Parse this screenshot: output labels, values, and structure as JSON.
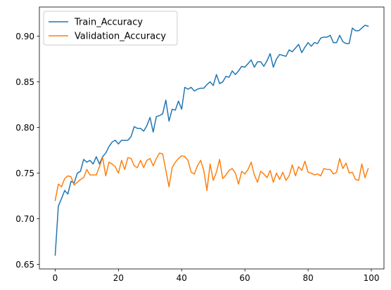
{
  "chart_data": {
    "type": "line",
    "title": "",
    "xlabel": "",
    "ylabel": "",
    "xlim": [
      -5,
      104
    ],
    "ylim": [
      0.645,
      0.932
    ],
    "xticks": [
      0,
      20,
      40,
      60,
      80,
      100
    ],
    "yticks": [
      0.65,
      0.7,
      0.75,
      0.8,
      0.85,
      0.9
    ],
    "ytick_labels": [
      "0.65",
      "0.70",
      "0.75",
      "0.80",
      "0.85",
      "0.90"
    ],
    "grid": false,
    "legend_position": "top-left",
    "series": [
      {
        "name": "Train_Accuracy",
        "color": "#1f77b4",
        "values": [
          0.66,
          0.714,
          0.722,
          0.731,
          0.727,
          0.741,
          0.739,
          0.75,
          0.752,
          0.765,
          0.762,
          0.764,
          0.76,
          0.768,
          0.76,
          0.768,
          0.772,
          0.779,
          0.784,
          0.786,
          0.782,
          0.786,
          0.786,
          0.786,
          0.79,
          0.801,
          0.799,
          0.799,
          0.796,
          0.802,
          0.811,
          0.795,
          0.812,
          0.813,
          0.815,
          0.83,
          0.807,
          0.82,
          0.819,
          0.829,
          0.82,
          0.844,
          0.842,
          0.844,
          0.84,
          0.842,
          0.843,
          0.843,
          0.847,
          0.85,
          0.846,
          0.858,
          0.848,
          0.85,
          0.856,
          0.855,
          0.862,
          0.858,
          0.862,
          0.867,
          0.866,
          0.87,
          0.874,
          0.866,
          0.872,
          0.872,
          0.867,
          0.873,
          0.881,
          0.866,
          0.875,
          0.88,
          0.879,
          0.878,
          0.885,
          0.883,
          0.887,
          0.891,
          0.882,
          0.888,
          0.893,
          0.889,
          0.893,
          0.892,
          0.898,
          0.899,
          0.899,
          0.901,
          0.893,
          0.893,
          0.901,
          0.894,
          0.892,
          0.892,
          0.909,
          0.906,
          0.906,
          0.909,
          0.912,
          0.911
        ]
      },
      {
        "name": "Validation_Accuracy",
        "color": "#ff7f0e",
        "values": [
          0.72,
          0.738,
          0.735,
          0.744,
          0.747,
          0.746,
          0.737,
          0.74,
          0.743,
          0.745,
          0.754,
          0.748,
          0.748,
          0.748,
          0.757,
          0.767,
          0.747,
          0.762,
          0.76,
          0.757,
          0.75,
          0.764,
          0.754,
          0.767,
          0.766,
          0.758,
          0.756,
          0.764,
          0.756,
          0.764,
          0.766,
          0.758,
          0.766,
          0.772,
          0.771,
          0.753,
          0.735,
          0.756,
          0.762,
          0.766,
          0.769,
          0.768,
          0.764,
          0.751,
          0.749,
          0.758,
          0.764,
          0.753,
          0.731,
          0.76,
          0.742,
          0.751,
          0.765,
          0.744,
          0.748,
          0.753,
          0.755,
          0.75,
          0.738,
          0.752,
          0.749,
          0.754,
          0.762,
          0.748,
          0.74,
          0.752,
          0.749,
          0.745,
          0.753,
          0.74,
          0.75,
          0.743,
          0.751,
          0.742,
          0.747,
          0.759,
          0.747,
          0.757,
          0.753,
          0.763,
          0.751,
          0.75,
          0.748,
          0.749,
          0.747,
          0.755,
          0.754,
          0.754,
          0.749,
          0.751,
          0.766,
          0.755,
          0.761,
          0.75,
          0.751,
          0.743,
          0.742,
          0.76,
          0.745,
          0.755
        ]
      }
    ]
  }
}
